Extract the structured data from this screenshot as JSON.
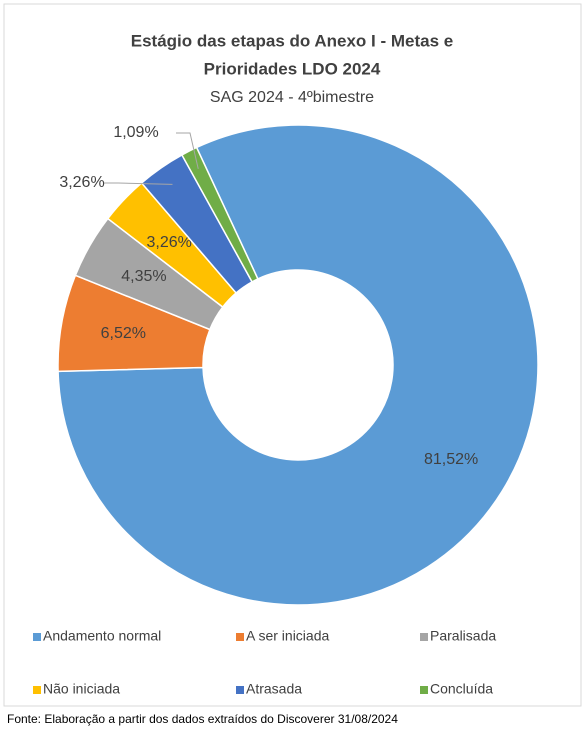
{
  "chart_data": {
    "type": "donut",
    "title": [
      "Estágio das etapas do Anexo I -  Metas e",
      "Prioridades LDO 2024"
    ],
    "subtitle": "SAG 2024 - 4ºbimestre",
    "categories": [
      "Andamento normal",
      "A ser iniciada",
      "Paralisada",
      "Não iniciada",
      "Atrasada",
      "Concluída"
    ],
    "values": [
      81.52,
      6.52,
      4.35,
      3.26,
      3.26,
      1.09
    ],
    "value_labels": [
      "81,52%",
      "6,52%",
      "4,35%",
      "3,26%",
      "3,26%",
      "1,09%"
    ],
    "colors": [
      "#5b9bd5",
      "#ed7d31",
      "#a5a5a5",
      "#ffc000",
      "#4472c4",
      "#70ad47"
    ],
    "legend": "bottom",
    "source": "Fonte: Elaboração a partir dos dados extraídos do Discoverer 31/08/2024"
  }
}
